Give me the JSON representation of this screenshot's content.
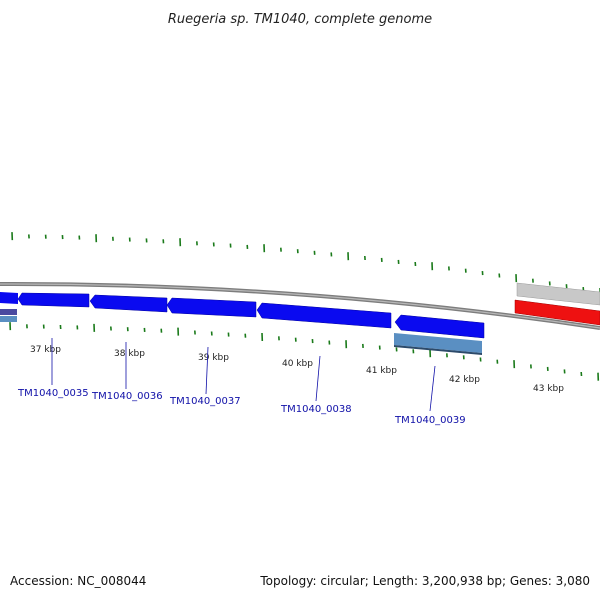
{
  "title": "Ruegeria sp. TM1040, complete genome",
  "footer": {
    "accession": "Accession: NC_008044",
    "summary": "Topology: circular; Length: 3,200,938 bp; Genes: 3,080"
  },
  "colors": {
    "gene_forward": "#0a0af0",
    "gene_highlight": "#5a8fc2",
    "gene_grey": "#c8c8c8",
    "gene_red": "#ee1111",
    "backbone": "#8a8a8a",
    "ticks": "#1a7a1a",
    "label": "#1010a8"
  },
  "ticks": [
    {
      "label": "37 kbp"
    },
    {
      "label": "38 kbp"
    },
    {
      "label": "39 kbp"
    },
    {
      "label": "40 kbp"
    },
    {
      "label": "41 kbp"
    },
    {
      "label": "42 kbp"
    },
    {
      "label": "43 kbp"
    }
  ],
  "genes": [
    {
      "label": "TM1040_0035"
    },
    {
      "label": "TM1040_0036"
    },
    {
      "label": "TM1040_0037"
    },
    {
      "label": "TM1040_0038"
    },
    {
      "label": "TM1040_0039"
    }
  ]
}
